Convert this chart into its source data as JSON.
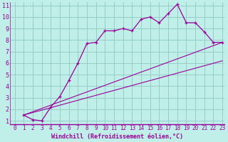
{
  "xlabel": "Windchill (Refroidissement éolien,°C)",
  "bg_color": "#c0eee8",
  "grid_color": "#98ccc8",
  "line_color": "#990099",
  "xmin": 0,
  "xmax": 23,
  "ymin": 1,
  "ymax": 11,
  "xticks": [
    0,
    1,
    2,
    3,
    4,
    5,
    6,
    7,
    8,
    9,
    10,
    11,
    12,
    13,
    14,
    15,
    16,
    17,
    18,
    19,
    20,
    21,
    22,
    23
  ],
  "yticks": [
    1,
    2,
    3,
    4,
    5,
    6,
    7,
    8,
    9,
    10,
    11
  ],
  "curve1_x": [
    1,
    2,
    3,
    4,
    5,
    6,
    7,
    8,
    9,
    10,
    11,
    12,
    13,
    14,
    15,
    16,
    17,
    18,
    19,
    20,
    21,
    22,
    23
  ],
  "curve1_y": [
    1.5,
    1.1,
    1.0,
    2.2,
    3.1,
    4.5,
    6.0,
    7.7,
    7.8,
    8.8,
    8.8,
    9.0,
    8.8,
    9.8,
    10.0,
    9.5,
    10.3,
    11.1,
    9.5,
    9.5,
    8.7,
    7.8,
    7.8
  ],
  "line1_x": [
    1,
    23
  ],
  "line1_y": [
    1.5,
    7.8
  ],
  "line2_x": [
    1,
    23
  ],
  "line2_y": [
    1.5,
    6.2
  ],
  "tick_fontsize": 5.5,
  "xlabel_fontsize": 6.0
}
